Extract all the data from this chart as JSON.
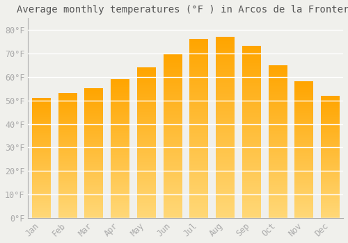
{
  "title": "Average monthly temperatures (°F ) in Arcos de la Frontera",
  "months": [
    "Jan",
    "Feb",
    "Mar",
    "Apr",
    "May",
    "Jun",
    "Jul",
    "Aug",
    "Sep",
    "Oct",
    "Nov",
    "Dec"
  ],
  "values": [
    51,
    53,
    55,
    59,
    64,
    70,
    76,
    77,
    73,
    65,
    58,
    52
  ],
  "bar_color_top": "#FFA500",
  "bar_color_bottom": "#FFD878",
  "ylim": [
    0,
    85
  ],
  "yticks": [
    0,
    10,
    20,
    30,
    40,
    50,
    60,
    70,
    80
  ],
  "ytick_labels": [
    "0°F",
    "10°F",
    "20°F",
    "30°F",
    "40°F",
    "50°F",
    "60°F",
    "70°F",
    "80°F"
  ],
  "background_color": "#F0F0EC",
  "grid_color": "#FFFFFF",
  "title_fontsize": 10,
  "tick_fontsize": 8.5,
  "tick_color": "#AAAAAA",
  "title_color": "#555555",
  "font_family": "monospace",
  "bar_width": 0.7
}
